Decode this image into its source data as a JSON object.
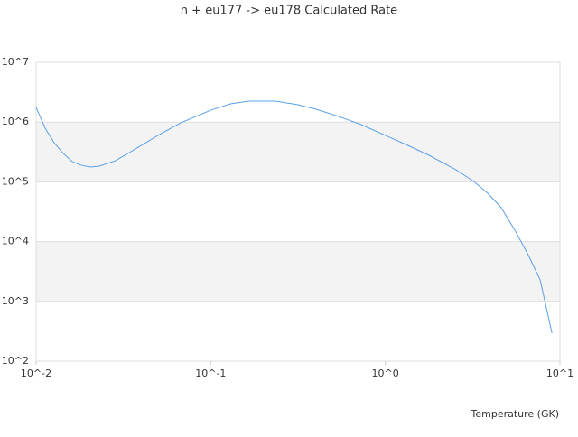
{
  "chart_data": {
    "type": "line",
    "title": "n + eu177 -> eu178 Calculated Rate",
    "x_label": "Temperature (GK)",
    "x_log": true,
    "y_log": true,
    "grid": true,
    "band_color": "#f3f3f3",
    "series": [
      {
        "color": "#5aa0e6",
        "x": [
          0.01,
          0.01127,
          0.01269,
          0.01429,
          0.0161,
          0.01815,
          0.0204,
          0.023,
          0.0285,
          0.0371,
          0.0499,
          0.0673,
          0.1,
          0.13,
          0.1645,
          0.235,
          0.316,
          0.402,
          0.541,
          0.728,
          1,
          1.315,
          1.78,
          2.54,
          3.22,
          3.86,
          4.61,
          5.52,
          6.6,
          7.7,
          9.0
        ],
        "values": [
          1760000,
          790000,
          450000,
          300000,
          218000,
          190000,
          177000,
          183000,
          226000,
          355000,
          598000,
          970000,
          1580000,
          2020000,
          2240000,
          2240000,
          1950000,
          1640000,
          1240000,
          907000,
          598000,
          420000,
          278000,
          159000,
          101000,
          64500,
          37000,
          15500,
          5900,
          2300,
          294
        ]
      }
    ],
    "xlim": [
      0.01,
      10
    ],
    "xticks": [
      {
        "value": 0.01,
        "label": "10^-2"
      },
      {
        "value": 0.1,
        "label": "10^-1"
      },
      {
        "value": 1,
        "label": "10^0"
      },
      {
        "value": 10,
        "label": "10^1"
      }
    ],
    "ylim": [
      100,
      10000000
    ],
    "yticks": [
      {
        "value": 100,
        "label": "10^2"
      },
      {
        "value": 1000,
        "label": "10^3"
      },
      {
        "value": 10000,
        "label": "10^4"
      },
      {
        "value": 100000,
        "label": "10^5"
      },
      {
        "value": 1000000,
        "label": "10^6"
      },
      {
        "value": 10000000,
        "label": "10^7"
      }
    ]
  }
}
